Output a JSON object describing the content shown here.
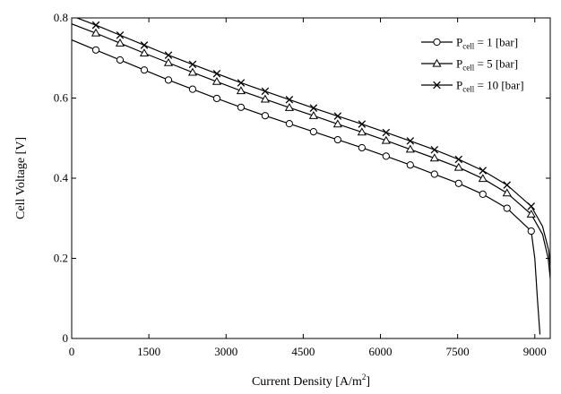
{
  "chart_data": {
    "type": "line",
    "title": "",
    "xlabel": "Current Density  [A/m",
    "xlabel_sup": "2",
    "xlabel_end": "]",
    "ylabel": "Cell Voltage  [V]",
    "xlim": [
      0,
      9300
    ],
    "ylim": [
      0,
      0.8
    ],
    "xticks": [
      0,
      1500,
      3000,
      4500,
      6000,
      7500,
      9000
    ],
    "yticks": [
      0,
      0.2,
      0.4,
      0.6,
      0.8
    ],
    "xtick_labels": [
      "0",
      "1500",
      "3000",
      "4500",
      "6000",
      "7500",
      "9000"
    ],
    "ytick_labels": [
      "0",
      "0.2",
      "0.4",
      "0.6",
      "0.8"
    ],
    "grid": false,
    "legend_position": "top-right",
    "series": [
      {
        "name_main": "P",
        "name_sub": "cell",
        "name_rest": " = 1 [bar]",
        "marker": "circle",
        "x": [
          0,
          470,
          940,
          1410,
          1880,
          2350,
          2820,
          3290,
          3760,
          4230,
          4700,
          5170,
          5640,
          6110,
          6580,
          7050,
          7520,
          7990,
          8460,
          8930,
          9000,
          9050,
          9100
        ],
        "y": [
          0.745,
          0.72,
          0.695,
          0.67,
          0.645,
          0.622,
          0.599,
          0.577,
          0.556,
          0.536,
          0.516,
          0.496,
          0.476,
          0.455,
          0.433,
          0.41,
          0.387,
          0.36,
          0.325,
          0.268,
          0.2,
          0.1,
          0.01
        ],
        "marker_x": [
          470,
          940,
          1410,
          1880,
          2350,
          2820,
          3290,
          3760,
          4230,
          4700,
          5170,
          5640,
          6110,
          6580,
          7050,
          7520,
          7990,
          8460,
          8930
        ],
        "marker_y": [
          0.72,
          0.695,
          0.67,
          0.645,
          0.622,
          0.599,
          0.577,
          0.556,
          0.536,
          0.516,
          0.496,
          0.476,
          0.455,
          0.433,
          0.41,
          0.387,
          0.36,
          0.325,
          0.268
        ]
      },
      {
        "name_main": "P",
        "name_sub": "cell",
        "name_rest": " = 5 [bar]",
        "marker": "triangle",
        "x": [
          0,
          470,
          940,
          1410,
          1880,
          2350,
          2820,
          3290,
          3760,
          4230,
          4700,
          5170,
          5640,
          6110,
          6580,
          7050,
          7520,
          7990,
          8460,
          8930,
          9150,
          9260,
          9300
        ],
        "y": [
          0.785,
          0.762,
          0.737,
          0.712,
          0.688,
          0.664,
          0.641,
          0.618,
          0.597,
          0.576,
          0.556,
          0.535,
          0.515,
          0.494,
          0.472,
          0.45,
          0.427,
          0.399,
          0.363,
          0.31,
          0.26,
          0.2,
          0.15
        ],
        "marker_x": [
          470,
          940,
          1410,
          1880,
          2350,
          2820,
          3290,
          3760,
          4230,
          4700,
          5170,
          5640,
          6110,
          6580,
          7050,
          7520,
          7990,
          8460,
          8930
        ],
        "marker_y": [
          0.762,
          0.737,
          0.712,
          0.688,
          0.664,
          0.641,
          0.618,
          0.597,
          0.576,
          0.556,
          0.535,
          0.515,
          0.494,
          0.472,
          0.45,
          0.427,
          0.399,
          0.363,
          0.31
        ]
      },
      {
        "name_main": "P",
        "name_sub": "cell",
        "name_rest": " = 10 [bar]",
        "marker": "cross",
        "x": [
          0,
          470,
          940,
          1410,
          1880,
          2350,
          2820,
          3290,
          3760,
          4230,
          4700,
          5170,
          5640,
          6110,
          6580,
          7050,
          7520,
          7990,
          8460,
          8930,
          9150,
          9270,
          9300
        ],
        "y": [
          0.805,
          0.782,
          0.757,
          0.732,
          0.707,
          0.684,
          0.661,
          0.638,
          0.617,
          0.596,
          0.575,
          0.555,
          0.535,
          0.514,
          0.493,
          0.471,
          0.447,
          0.419,
          0.383,
          0.33,
          0.28,
          0.22,
          0.18
        ],
        "marker_x": [
          470,
          940,
          1410,
          1880,
          2350,
          2820,
          3290,
          3760,
          4230,
          4700,
          5170,
          5640,
          6110,
          6580,
          7050,
          7520,
          7990,
          8460,
          8930
        ],
        "marker_y": [
          0.782,
          0.757,
          0.732,
          0.707,
          0.684,
          0.661,
          0.638,
          0.617,
          0.596,
          0.575,
          0.555,
          0.535,
          0.514,
          0.493,
          0.471,
          0.447,
          0.419,
          0.383,
          0.33
        ]
      }
    ]
  }
}
